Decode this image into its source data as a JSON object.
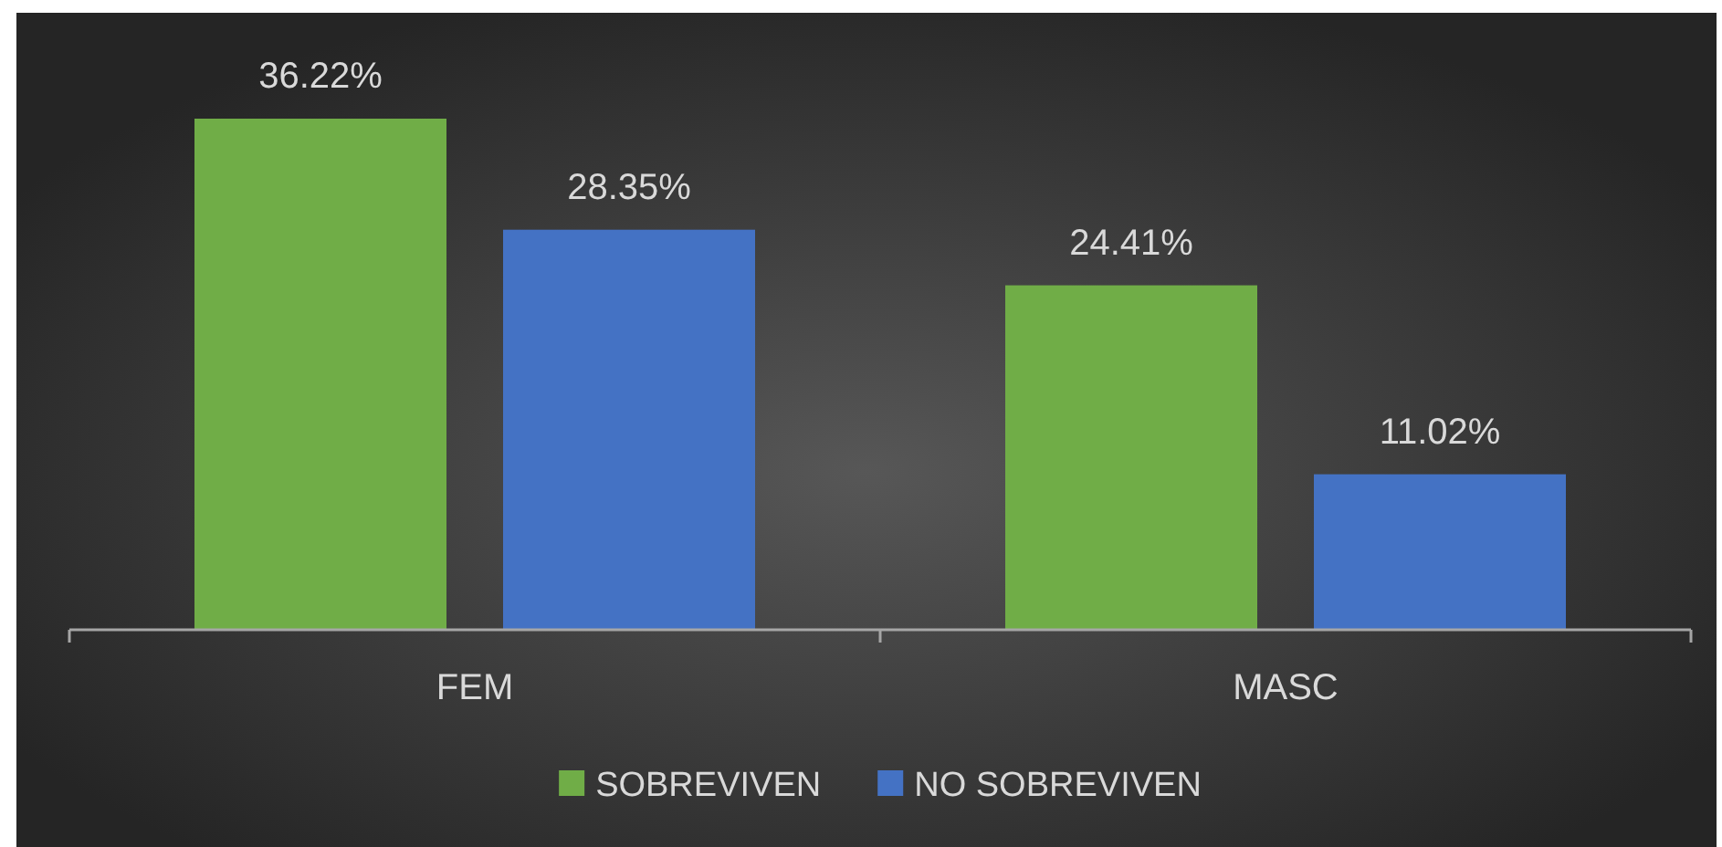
{
  "chart_data": {
    "type": "bar",
    "categories": [
      "FEM",
      "MASC"
    ],
    "series": [
      {
        "name": "SOBREVIVEN",
        "color": "#70ad47",
        "values": [
          36.22,
          24.41
        ],
        "value_labels": [
          "36.22%",
          "24.41%"
        ]
      },
      {
        "name": "NO SOBREVIVEN",
        "color": "#4472c4",
        "values": [
          28.35,
          11.02
        ],
        "value_labels": [
          "28.35%",
          "11.02%"
        ]
      }
    ],
    "legend": "bottom"
  }
}
